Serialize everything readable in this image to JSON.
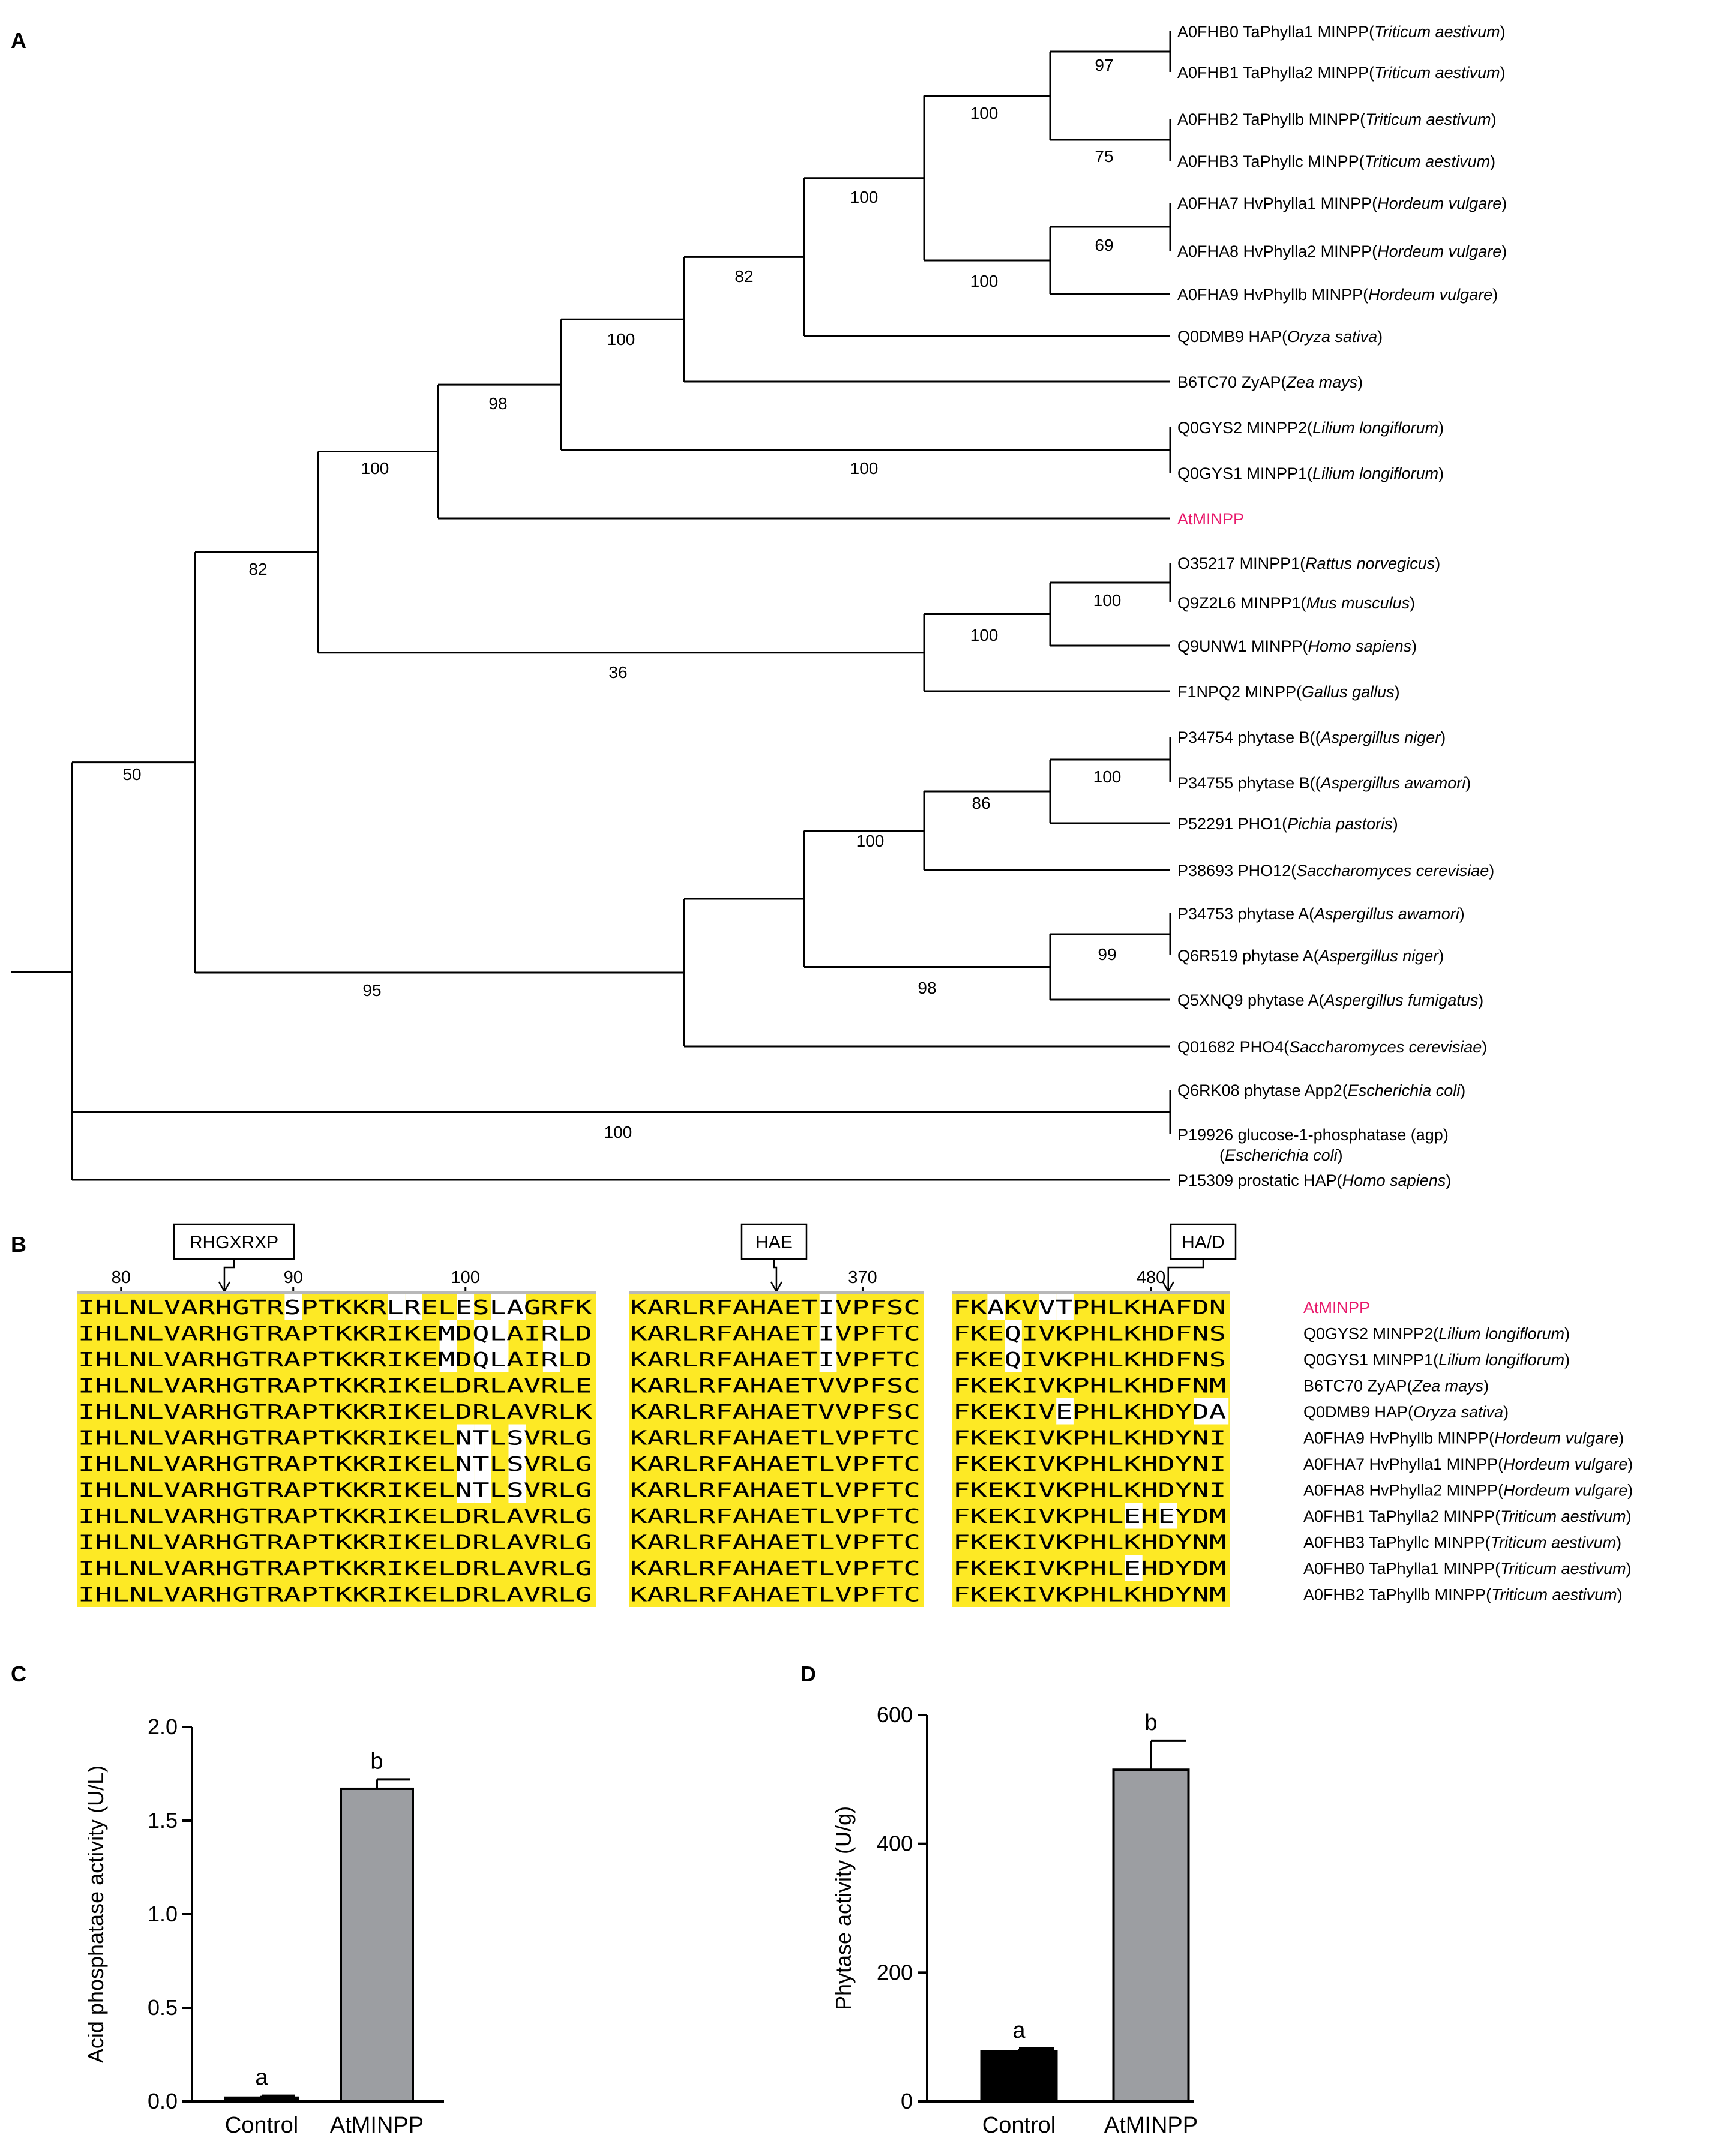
{
  "panels": {
    "a": "A",
    "b": "B",
    "c": "C",
    "d": "D"
  },
  "tree": {
    "taxa": [
      {
        "acc": "A0FHB0",
        "name": "TaPhylla1 MINPP",
        "sp": "Triticum aestivum"
      },
      {
        "acc": "A0FHB1",
        "name": "TaPhylla2 MINPP",
        "sp": "Triticum aestivum"
      },
      {
        "acc": "A0FHB2",
        "name": "TaPhyllb MINPP",
        "sp": "Triticum aestivum"
      },
      {
        "acc": "A0FHB3",
        "name": "TaPhyllc MINPP",
        "sp": "Triticum aestivum"
      },
      {
        "acc": "A0FHA7",
        "name": "HvPhylla1 MINPP",
        "sp": "Hordeum vulgare"
      },
      {
        "acc": "A0FHA8",
        "name": "HvPhylla2 MINPP",
        "sp": "Hordeum vulgare"
      },
      {
        "acc": "A0FHA9",
        "name": "HvPhyllb MINPP",
        "sp": "Hordeum vulgare"
      },
      {
        "acc": "Q0DMB9",
        "name": "HAP",
        "sp": "Oryza sativa"
      },
      {
        "acc": "B6TC70",
        "name": "ZyAP",
        "sp": "Zea mays"
      },
      {
        "acc": "Q0GYS2",
        "name": "MINPP2",
        "sp": "Lilium longiflorum"
      },
      {
        "acc": "Q0GYS1",
        "name": "MINPP1",
        "sp": "Lilium longiflorum"
      },
      {
        "acc": "",
        "name": "AtMINPP",
        "sp": "",
        "highlight": true
      },
      {
        "acc": "O35217",
        "name": "MINPP1",
        "sp": "Rattus norvegicus"
      },
      {
        "acc": "Q9Z2L6",
        "name": "MINPP1",
        "sp": "Mus musculus"
      },
      {
        "acc": "Q9UNW1",
        "name": "MINPP",
        "sp": "Homo sapiens"
      },
      {
        "acc": "F1NPQ2",
        "name": "MINPP",
        "sp": "Gallus gallus"
      },
      {
        "acc": "P34754",
        "name": "phytase B(",
        "sp": "Aspergillus niger"
      },
      {
        "acc": "P34755",
        "name": "phytase B(",
        "sp": "Aspergillus awamori"
      },
      {
        "acc": "P52291",
        "name": "PHO1",
        "sp": "Pichia pastoris"
      },
      {
        "acc": "P38693",
        "name": "PHO12",
        "sp": "Saccharomyces cerevisiae"
      },
      {
        "acc": "P34753",
        "name": "phytase A",
        "sp": "Aspergillus awamori"
      },
      {
        "acc": "Q6R519",
        "name": "phytase A",
        "sp": "Aspergillus niger"
      },
      {
        "acc": "Q5XNQ9",
        "name": "phytase A",
        "sp": "Aspergillus fumigatus"
      },
      {
        "acc": "Q01682",
        "name": "PHO4",
        "sp": "Saccharomyces cerevisiae"
      },
      {
        "acc": "Q6RK08",
        "name": "phytase App2",
        "sp": "Escherichia coli"
      },
      {
        "acc": "P19926",
        "name": "glucose-1-phosphatase (agp)",
        "sp": "Escherichia coli",
        "wrap": true
      },
      {
        "acc": "P15309",
        "name": "prostatic HAP",
        "sp": "Homo sapiens"
      }
    ],
    "bootstrap": [
      "97",
      "75",
      "100",
      "69",
      "100",
      "100",
      "82",
      "100",
      "100",
      "98",
      "100",
      "82",
      "100",
      "100",
      "36",
      "100",
      "86",
      "99",
      "100",
      "98",
      "95",
      "50",
      "100"
    ]
  },
  "alignment": {
    "motifs": [
      "RHGXRXP",
      "HAE",
      "HA/D"
    ],
    "positions": [
      "80",
      "90",
      "100",
      "370",
      "480"
    ],
    "blocks": [
      [
        "IHLNLVARHGTRSPTKKRLRELESLAGRFK",
        "IHLNLVARHGTRAPTKKRIKEMDQLAIRLD",
        "IHLNLVARHGTRAPTKKRIKEMDQLAIRLD",
        "IHLNLVARHGTRAPTKKRIKELDRLAVRLE",
        "IHLNLVARHGTRAPTKKRIKELDRLAVRLK",
        "IHLNLVARHGTRAPTKKRIKELNTLSVRLG",
        "IHLNLVARHGTRAPTKKRIKELNTLSVRLG",
        "IHLNLVARHGTRAPTKKRIKELNTLSVRLG",
        "IHLNLVARHGTRAPTKKRIKELDRLAVRLG",
        "IHLNLVARHGTRAPTKKRIKELDRLAVRLG",
        "IHLNLVARHGTRAPTKKRIKELDRLAVRLG",
        "IHLNLVARHGTRAPTKKRIKELDRLAVRLG"
      ],
      [
        "KARLRFAHAETIVPFSC",
        "KARLRFAHAETIVPFTC",
        "KARLRFAHAETIVPFTC",
        "KARLRFAHAETVVPFSC",
        "KARLRFAHAETVVPFSC",
        "KARLRFAHAETLVPFTC",
        "KARLRFAHAETLVPFTC",
        "KARLRFAHAETLVPFTC",
        "KARLRFAHAETLVPFTC",
        "KARLRFAHAETLVPFTC",
        "KARLRFAHAETLVPFTC",
        "KARLRFAHAETLVPFTC"
      ],
      [
        "FKAKVVTPHLKHAFDN",
        "FKEQIVKPHLKHDFNS",
        "FKEQIVKPHLKHDFNS",
        "FKEKIVKPHLKHDFNM",
        "FKEKIVEPHLKHDYDA",
        "FKEKIVKPHLKHDYNI",
        "FKEKIVKPHLKHDYNI",
        "FKEKIVKPHLKHDYNI",
        "FKEKIVKPHLEHEYDM",
        "FKEKIVKPHLKHDYNM",
        "FKEKIVKPHLEHDYDM",
        "FKEKIVKPHLKHDYNM"
      ]
    ],
    "white": [
      [
        [
          12,
          18,
          19,
          22,
          24,
          25
        ],
        [
          21,
          23,
          24,
          27
        ],
        [
          21,
          23,
          24,
          27
        ],
        [],
        [],
        [
          22,
          23,
          25
        ],
        [
          22,
          23,
          25
        ],
        [
          22,
          23,
          25
        ],
        [],
        [],
        [],
        []
      ],
      [
        [
          11
        ],
        [
          11
        ],
        [
          11
        ],
        [],
        [],
        [],
        [],
        [],
        [],
        [],
        [],
        []
      ],
      [
        [
          2,
          5,
          6
        ],
        [
          3
        ],
        [
          3
        ],
        [],
        [
          6,
          14,
          15
        ],
        [],
        [],
        [],
        [
          10,
          12
        ],
        [],
        [
          10
        ],
        []
      ]
    ],
    "labels": [
      {
        "acc": "",
        "name": "AtMINPP",
        "sp": "",
        "highlight": true
      },
      {
        "acc": "Q0GYS2",
        "name": "MINPP2",
        "sp": "Lilium longiflorum"
      },
      {
        "acc": "Q0GYS1",
        "name": "MINPP1",
        "sp": "Lilium longiflorum"
      },
      {
        "acc": "B6TC70",
        "name": "ZyAP",
        "sp": "Zea mays"
      },
      {
        "acc": "Q0DMB9",
        "name": "HAP",
        "sp": "Oryza sativa"
      },
      {
        "acc": "A0FHA9",
        "name": "HvPhyllb MINPP",
        "sp": "Hordeum vulgare"
      },
      {
        "acc": "A0FHA7",
        "name": "HvPhylla1 MINPP",
        "sp": "Hordeum vulgare"
      },
      {
        "acc": "A0FHA8",
        "name": "HvPhylla2 MINPP",
        "sp": "Hordeum vulgare"
      },
      {
        "acc": "A0FHB1",
        "name": "TaPhylla2 MINPP",
        "sp": "Triticum aestivum"
      },
      {
        "acc": "A0FHB3",
        "name": "TaPhyllc MINPP",
        "sp": "Triticum aestivum"
      },
      {
        "acc": "A0FHB0",
        "name": "TaPhylla1 MINPP",
        "sp": "Triticum aestivum"
      },
      {
        "acc": "A0FHB2",
        "name": "TaPhyllb MINPP",
        "sp": "Triticum aestivum"
      }
    ]
  },
  "chart_data": [
    {
      "type": "bar",
      "categories": [
        "Control",
        "AtMINPP"
      ],
      "values": [
        0.02,
        1.67
      ],
      "errors": [
        0.01,
        0.05
      ],
      "letters": [
        "a",
        "b"
      ],
      "ylabel": "Acid phosphatase activity (U/L)",
      "ylim": [
        0,
        2.0
      ],
      "yticks": [
        "0.0",
        "0.5",
        "1.0",
        "1.5",
        "2.0"
      ],
      "colors": [
        "#000000",
        "#9c9ea2"
      ]
    },
    {
      "type": "bar",
      "categories": [
        "Control",
        "AtMINPP"
      ],
      "values": [
        78,
        515
      ],
      "errors": [
        4,
        45
      ],
      "letters": [
        "a",
        "b"
      ],
      "ylabel": "Phytase  activity (U/g)",
      "ylim": [
        0,
        600
      ],
      "yticks": [
        "0",
        "200",
        "400",
        "600"
      ],
      "colors": [
        "#000000",
        "#9c9ea2"
      ]
    }
  ],
  "colors": {
    "highlight": "#e8196b",
    "conserved": "#fde925",
    "line": "#000000"
  }
}
